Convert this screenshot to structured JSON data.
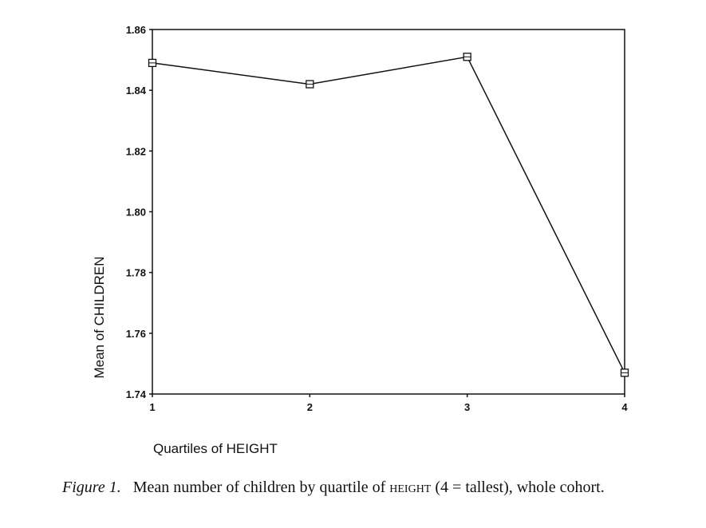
{
  "chart_data": {
    "type": "line",
    "x": [
      1,
      2,
      3,
      4
    ],
    "y": [
      1.849,
      1.842,
      1.851,
      1.747
    ],
    "xlim": [
      1,
      4
    ],
    "ylim": [
      1.74,
      1.86
    ],
    "x_ticks": [
      "1",
      "2",
      "3",
      "4"
    ],
    "y_ticks": [
      "1.74",
      "1.76",
      "1.78",
      "1.80",
      "1.82",
      "1.84",
      "1.86"
    ],
    "xlabel": "Quartiles of HEIGHT",
    "ylabel": "Mean of CHILDREN",
    "marker": "square-open",
    "color": "#111111",
    "grid": false
  },
  "caption": {
    "label": "Figure 1.",
    "text_before": "Mean number of children by quartile of",
    "variable": "height",
    "text_after": "(4 = tallest), whole cohort."
  }
}
